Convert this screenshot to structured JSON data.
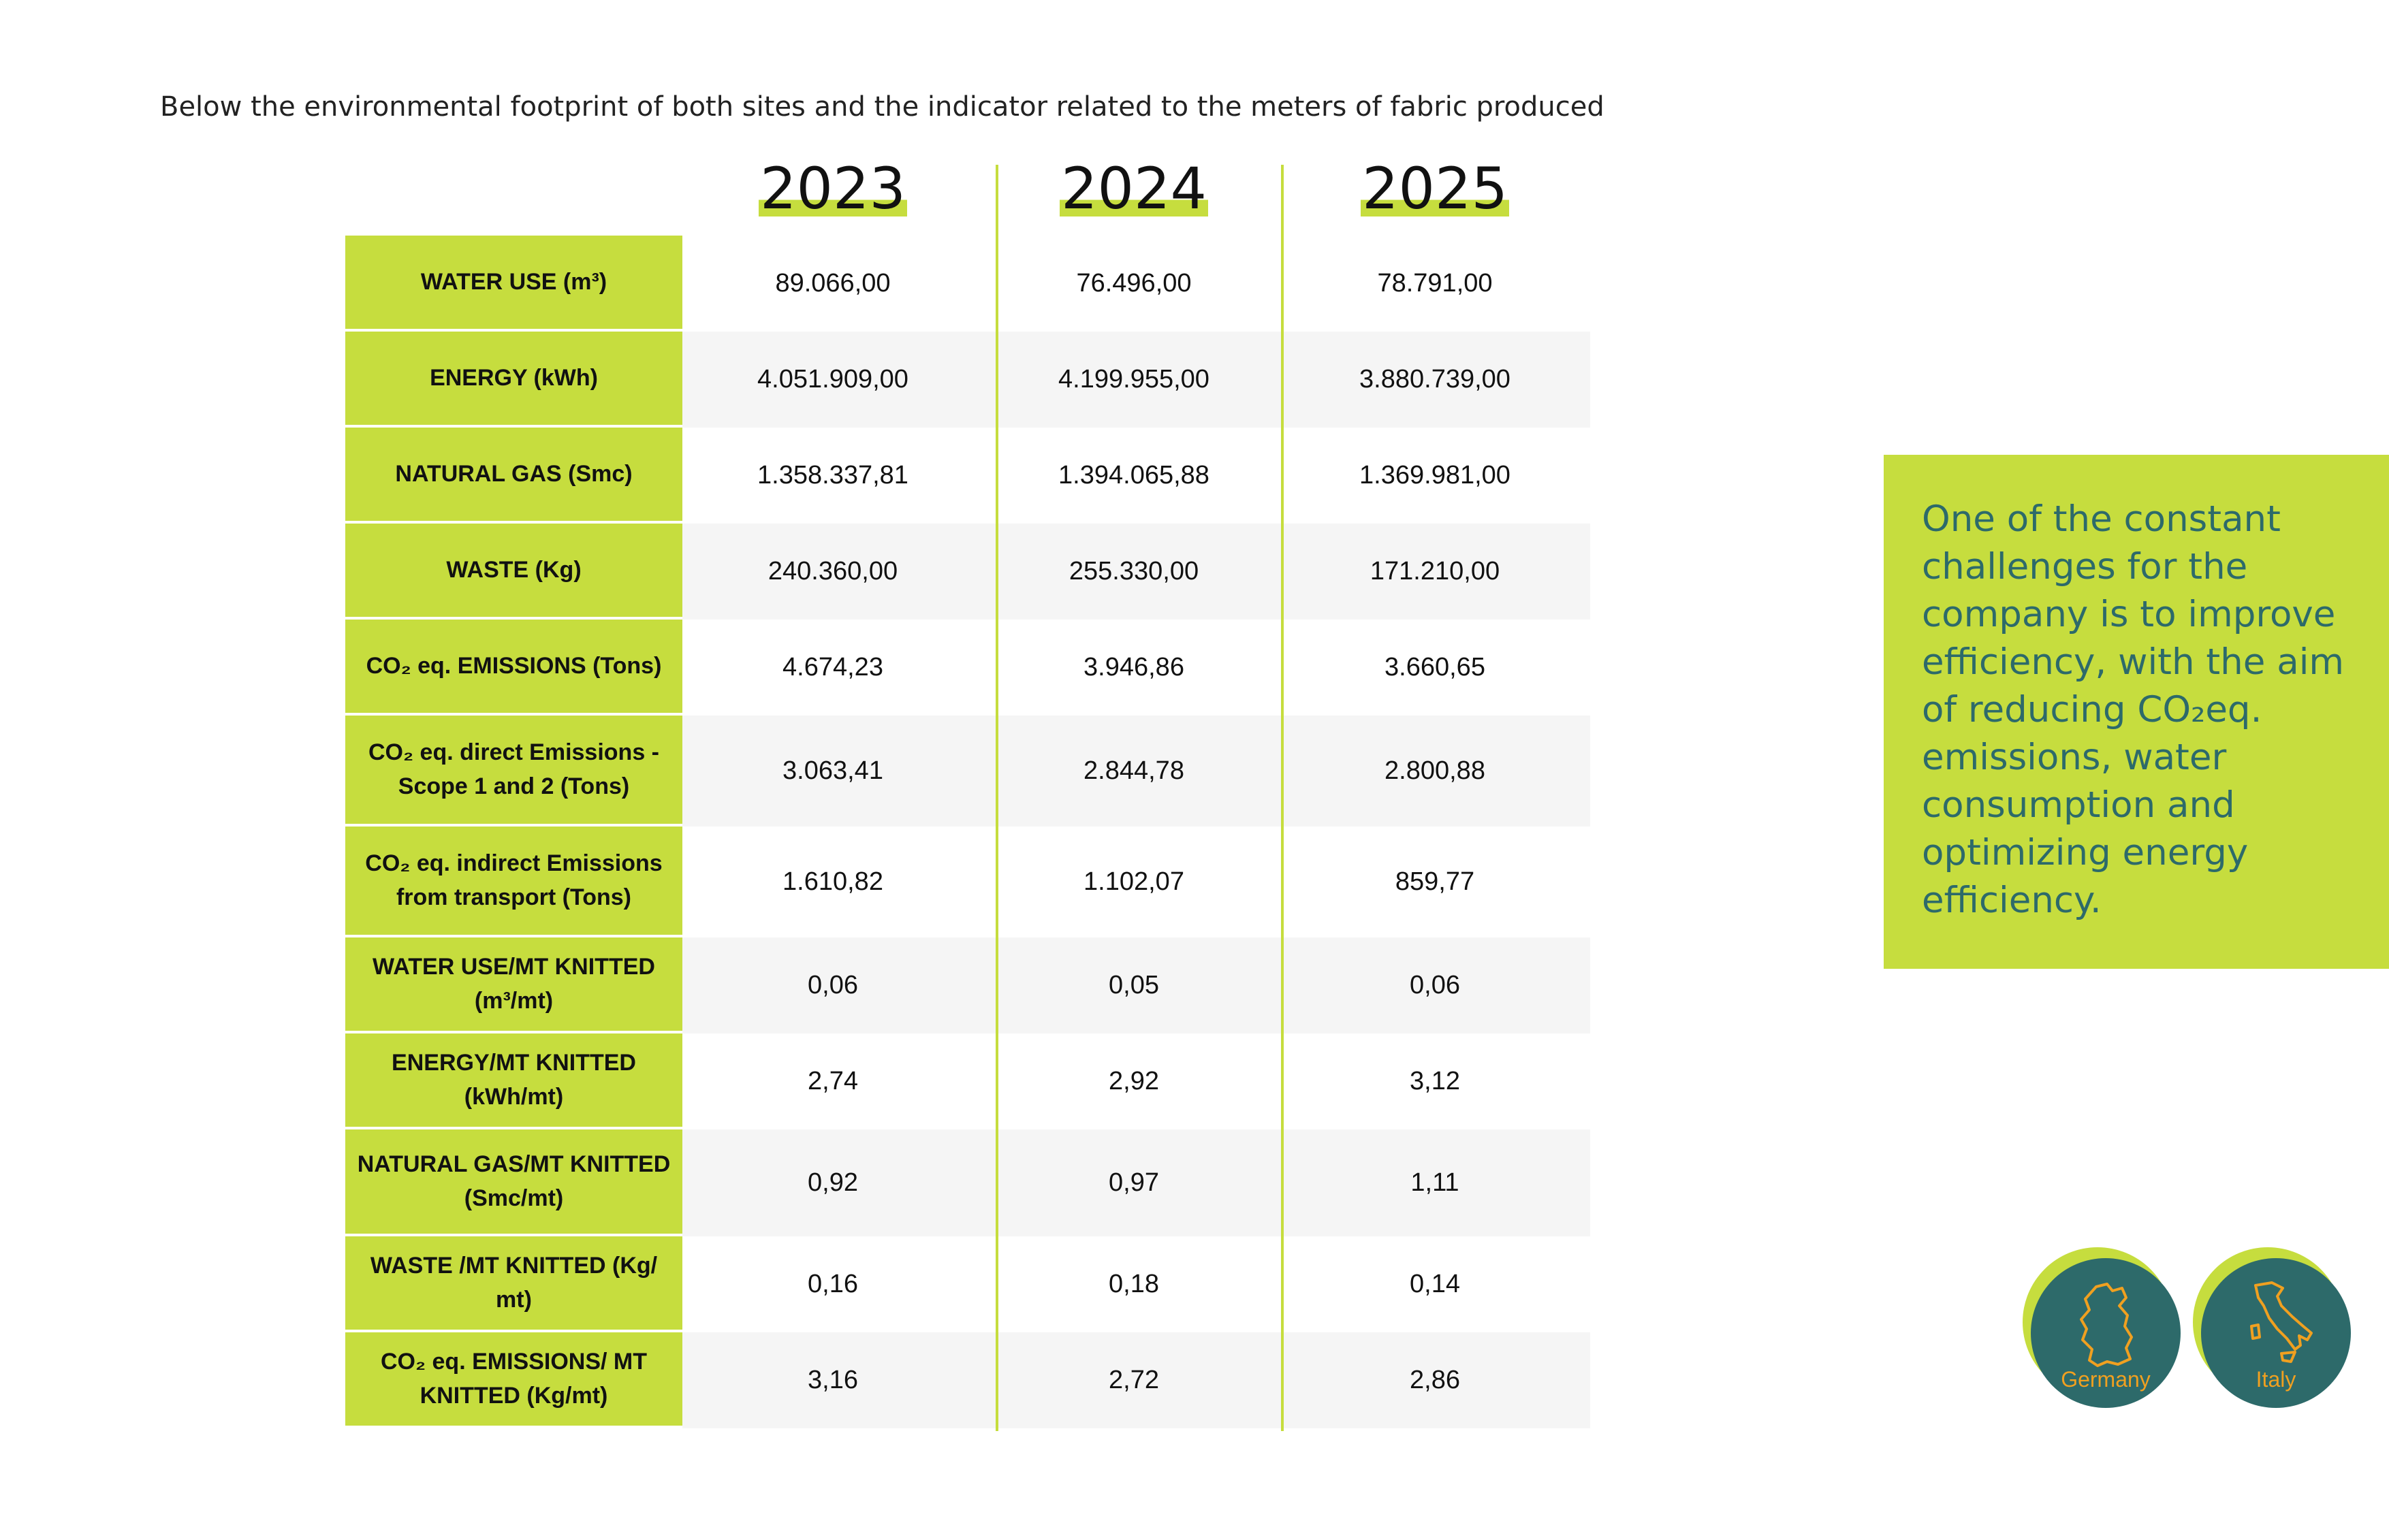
{
  "intro": "Below the environmental footprint of both sites and the indicator related to the meters of fabric produced",
  "years": [
    "2023",
    "2024",
    "2025"
  ],
  "rows": [
    {
      "label": "WATER USE (m³)",
      "values": [
        "89.066,00",
        "76.496,00",
        "78.791,00"
      ]
    },
    {
      "label": "ENERGY (kWh)",
      "values": [
        "4.051.909,00",
        "4.199.955,00",
        "3.880.739,00"
      ]
    },
    {
      "label": "NATURAL GAS (Smc)",
      "values": [
        "1.358.337,81",
        "1.394.065,88",
        "1.369.981,00"
      ]
    },
    {
      "label": "WASTE (Kg)",
      "values": [
        "240.360,00",
        "255.330,00",
        "171.210,00"
      ]
    },
    {
      "label": "CO₂ eq. EMISSIONS (Tons)",
      "values": [
        "4.674,23",
        "3.946,86",
        "3.660,65"
      ]
    },
    {
      "label": "CO₂ eq. direct Emissions - Scope 1 and 2 (Tons)",
      "values": [
        "3.063,41",
        "2.844,78",
        "2.800,88"
      ]
    },
    {
      "label": "CO₂ eq. indirect Emissions from transport (Tons)",
      "values": [
        "1.610,82",
        "1.102,07",
        "859,77"
      ]
    },
    {
      "label": "WATER USE/MT KNITTED (m³/mt)",
      "values": [
        "0,06",
        "0,05",
        "0,06"
      ]
    },
    {
      "label": "ENERGY/MT KNITTED (kWh/mt)",
      "values": [
        "2,74",
        "2,92",
        "3,12"
      ]
    },
    {
      "label": "NATURAL GAS/MT KNITTED (Smc/mt)",
      "values": [
        "0,92",
        "0,97",
        "1,11"
      ]
    },
    {
      "label": "WASTE /MT KNITTED (Kg/ mt)",
      "values": [
        "0,16",
        "0,18",
        "0,14"
      ]
    },
    {
      "label": "CO₂ eq. EMISSIONS/ MT KNITTED (Kg/mt)",
      "values": [
        "3,16",
        "2,72",
        "2,86"
      ]
    }
  ],
  "callout": "One of the constant challenges for the company is to improve efficiency, with the aim of reducing CO₂eq. emissions, water consumption and optimizing energy efficiency.",
  "badges": [
    {
      "label": "Germany",
      "icon": "germany-map-icon"
    },
    {
      "label": "Italy",
      "icon": "italy-map-icon"
    }
  ],
  "colors": {
    "accent": "#c6dd3e",
    "teal": "#2d6a6a",
    "orange": "#f0a020",
    "shade": "#f5f5f5"
  }
}
